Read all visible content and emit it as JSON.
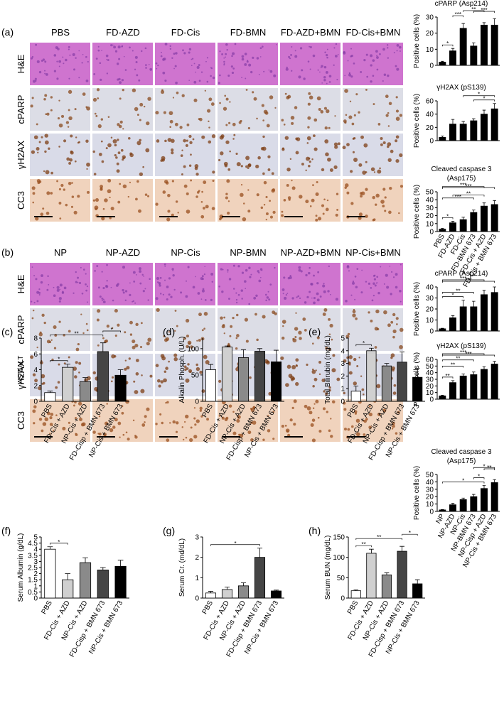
{
  "histology": [
    {
      "panel": "(a)",
      "columns": [
        "PBS",
        "FD-AZD",
        "FD-Cis",
        "FD-BMN",
        "FD-AZD+BMN",
        "FD-Cis+BMN"
      ],
      "rows": [
        "H&E",
        "cPARP",
        "γH2AX",
        "CC3"
      ]
    },
    {
      "panel": "(b)",
      "columns": [
        "NP",
        "NP-AZD",
        "NP-Cis",
        "NP-BMN",
        "NP-AZD+BMN",
        "NP-Cis+BMN"
      ],
      "rows": [
        "H&E",
        "cPARP",
        "γH2AX",
        "CC3"
      ]
    }
  ],
  "chart_data": [
    {
      "type": "bar",
      "title": [
        "cPARP (Asp214)"
      ],
      "ylabel": "Positive cells (%)",
      "ylim": [
        0,
        30
      ],
      "yticks": [
        0,
        10,
        20,
        30
      ],
      "values": [
        2,
        9,
        23,
        12,
        25,
        25
      ],
      "errors": [
        0.5,
        1.5,
        3,
        2,
        1.5,
        4
      ],
      "colors": [
        "#000000",
        "#000000",
        "#000000",
        "#000000",
        "#000000",
        "#000000"
      ],
      "brackets": [
        {
          "pair": [
            0,
            1
          ],
          "label": "*"
        },
        {
          "pair": [
            1,
            2
          ],
          "label": "***"
        },
        {
          "pair": [
            2,
            4
          ],
          "label": "**"
        },
        {
          "pair": [
            3,
            5
          ],
          "label": "***"
        }
      ]
    },
    {
      "type": "bar",
      "title": [
        "γH2AX (pS139)"
      ],
      "ylabel": "Positive cells (%)",
      "ylim": [
        0,
        60
      ],
      "yticks": [
        0,
        20,
        40,
        60
      ],
      "values": [
        5,
        25,
        25,
        30,
        40,
        48
      ],
      "errors": [
        2,
        7,
        4,
        3,
        6,
        8
      ],
      "colors": [
        "#000000",
        "#000000",
        "#000000",
        "#000000",
        "#000000",
        "#000000"
      ],
      "brackets": [
        {
          "pair": [
            3,
            5
          ],
          "label": "*"
        },
        {
          "pair": [
            2,
            5
          ],
          "label": "*"
        }
      ]
    },
    {
      "type": "bar",
      "title": [
        "Cleaved caspase 3",
        "(Asp175)"
      ],
      "ylabel": "Positive cells (%)",
      "ylim": [
        0,
        50
      ],
      "yticks": [
        0,
        10,
        20,
        30,
        40,
        50
      ],
      "categories": [
        "PBS",
        "FD-AZD",
        "FD-Cis",
        "FD-BMN 673",
        "FD-Cis + AZD",
        "FD-Cis + BMN 673"
      ],
      "values": [
        3,
        11,
        15,
        24,
        32,
        34
      ],
      "errors": [
        1,
        2,
        3,
        3,
        4,
        5
      ],
      "colors": [
        "#000000",
        "#000000",
        "#000000",
        "#000000",
        "#000000",
        "#000000"
      ],
      "brackets": [
        {
          "pair": [
            0,
            1
          ],
          "label": "*"
        },
        {
          "pair": [
            1,
            4
          ],
          "label": "**"
        },
        {
          "pair": [
            0,
            3
          ],
          "label": "***"
        },
        {
          "pair": [
            0,
            4
          ],
          "label": "***"
        },
        {
          "pair": [
            0,
            5
          ],
          "label": "***"
        }
      ]
    },
    {
      "type": "bar",
      "title": [
        "cPARP (Asp214)"
      ],
      "ylabel": "Positive cells (%)",
      "ylim": [
        0,
        40
      ],
      "yticks": [
        0,
        10,
        20,
        30,
        40
      ],
      "values": [
        2,
        12,
        22,
        22,
        33,
        35
      ],
      "errors": [
        0.5,
        2,
        6,
        5,
        4,
        5
      ],
      "colors": [
        "#000000",
        "#000000",
        "#000000",
        "#000000",
        "#000000",
        "#000000"
      ],
      "brackets": [
        {
          "pair": [
            0,
            2
          ],
          "label": "*"
        },
        {
          "pair": [
            0,
            3
          ],
          "label": "**"
        },
        {
          "pair": [
            0,
            4
          ],
          "label": "***"
        },
        {
          "pair": [
            0,
            5
          ],
          "label": "***"
        }
      ]
    },
    {
      "type": "bar",
      "title": [
        "γH2AX (pS139)"
      ],
      "ylabel": "Positive cells (%)",
      "ylim": [
        0,
        60
      ],
      "yticks": [
        0,
        10,
        20,
        30,
        40,
        50,
        60
      ],
      "values": [
        5,
        25,
        35,
        37,
        45,
        53
      ],
      "errors": [
        1,
        3,
        3,
        4,
        4,
        4
      ],
      "colors": [
        "#000000",
        "#000000",
        "#000000",
        "#000000",
        "#000000",
        "#000000"
      ],
      "brackets": [
        {
          "pair": [
            0,
            1
          ],
          "label": "**"
        },
        {
          "pair": [
            0,
            2
          ],
          "label": "**"
        },
        {
          "pair": [
            0,
            3
          ],
          "label": "**"
        },
        {
          "pair": [
            0,
            4
          ],
          "label": "***"
        },
        {
          "pair": [
            0,
            5
          ],
          "label": "***"
        }
      ]
    },
    {
      "type": "bar",
      "title": [
        "Cleaved caspase 3",
        "(Asp175)"
      ],
      "ylabel": "Positive cells (%)",
      "ylim": [
        0,
        50
      ],
      "yticks": [
        0,
        10,
        20,
        30,
        40,
        50
      ],
      "categories": [
        "NP",
        "NP-AZD",
        "NP-Cis",
        "NP-BMN 673",
        "NP-Cisp + AZD",
        "NP-Cis + BMN 673"
      ],
      "values": [
        2,
        9,
        16,
        20,
        31,
        39
      ],
      "errors": [
        0.5,
        2,
        2,
        3,
        4,
        4
      ],
      "colors": [
        "#000000",
        "#000000",
        "#000000",
        "#000000",
        "#000000",
        "#000000"
      ],
      "brackets": [
        {
          "pair": [
            0,
            4
          ],
          "label": "*"
        },
        {
          "pair": [
            3,
            4
          ],
          "label": "*"
        },
        {
          "pair": [
            3,
            5
          ],
          "label": "*"
        },
        {
          "pair": [
            4,
            5
          ],
          "label": "**"
        }
      ]
    },
    {
      "type": "bar",
      "panel": "(c)",
      "ylabel": "AST/ALT",
      "ylim": [
        0,
        8
      ],
      "yticks": [
        0,
        2,
        4,
        6,
        8
      ],
      "categories": [
        "PBS",
        "FD-Cis + AZD",
        "NP-Cis + AZD",
        "FD-Cisp + BMN 673",
        "NP-Cis + BMN 673"
      ],
      "values": [
        1.1,
        4.3,
        2.5,
        6.3,
        3.3
      ],
      "errors": [
        0.2,
        0.4,
        0.5,
        1.1,
        0.7
      ],
      "colors": [
        "#ffffff",
        "#d0d0d0",
        "#8a8a8a",
        "#454545",
        "#000000"
      ],
      "brackets": [
        {
          "pair": [
            0,
            1
          ],
          "label": "*"
        },
        {
          "pair": [
            0,
            3
          ],
          "label": "**"
        },
        {
          "pair": [
            3,
            4
          ],
          "label": "*"
        }
      ]
    },
    {
      "type": "bar",
      "panel": "(d)",
      "ylabel": "Alkalin Phosph. (U/L)",
      "ylim": [
        0,
        120
      ],
      "yticks": [
        0,
        50,
        100
      ],
      "categories": [
        "PBS",
        "FD-Cis + AZD",
        "NP-Cis + AZD",
        "FD-Cisp + BMN 673",
        "NP-Cis + BMN 673"
      ],
      "values": [
        60,
        103,
        83,
        95,
        75
      ],
      "errors": [
        10,
        2,
        15,
        5,
        22
      ],
      "colors": [
        "#ffffff",
        "#d0d0d0",
        "#8a8a8a",
        "#454545",
        "#000000"
      ],
      "brackets": []
    },
    {
      "type": "bar",
      "panel": "(e)",
      "ylabel": "Total Bilirubin (mg/dL)",
      "ylim": [
        0,
        5
      ],
      "yticks": [
        0,
        1,
        2,
        3,
        4,
        5
      ],
      "categories": [
        "PBS",
        "FD-Cis + AZD",
        "NP-Cis + AZD",
        "FD-Cisp + BMN 673",
        "NP-Cis + BMN 673"
      ],
      "values": [
        0.8,
        4.0,
        2.8,
        3.1,
        1.9
      ],
      "errors": [
        0.4,
        0.2,
        0.2,
        0.8,
        0.7
      ],
      "colors": [
        "#ffffff",
        "#d0d0d0",
        "#8a8a8a",
        "#454545",
        "#000000"
      ],
      "brackets": [
        {
          "pair": [
            0,
            1
          ],
          "label": "*"
        }
      ]
    },
    {
      "type": "bar",
      "panel": "(f)",
      "ylabel": "Serum Albumin (g/dL)",
      "ylim": [
        0,
        5
      ],
      "yticks": [
        0,
        0.5,
        1,
        1.5,
        2,
        2.5,
        3,
        3.5,
        4,
        4.5,
        5
      ],
      "categories": [
        "PBS",
        "FD-Cis + AZD",
        "NP-Cis + AZD",
        "FD-Cisp + BMN 673",
        "NP-Cis + BMN 673"
      ],
      "values": [
        4.0,
        1.5,
        2.9,
        2.3,
        2.6
      ],
      "errors": [
        0.2,
        0.5,
        0.4,
        0.2,
        0.5
      ],
      "colors": [
        "#ffffff",
        "#d0d0d0",
        "#8a8a8a",
        "#454545",
        "#000000"
      ],
      "brackets": [
        {
          "pair": [
            0,
            1
          ],
          "label": "*"
        }
      ]
    },
    {
      "type": "bar",
      "panel": "(g)",
      "ylabel": "Serum Cr. (md/dL)",
      "ylim": [
        0,
        3
      ],
      "yticks": [
        0,
        1,
        2,
        3
      ],
      "categories": [
        "PBS",
        "FD-Cis + AZD",
        "NP-Cis + AZD",
        "FD-Cisp + BMN 673",
        "NP-Cis + BMN 673"
      ],
      "values": [
        0.25,
        0.42,
        0.6,
        2.0,
        0.35
      ],
      "errors": [
        0.08,
        0.12,
        0.15,
        0.45,
        0.04
      ],
      "colors": [
        "#ffffff",
        "#d0d0d0",
        "#8a8a8a",
        "#454545",
        "#000000"
      ],
      "brackets": [
        {
          "pair": [
            0,
            3
          ],
          "label": "*"
        }
      ]
    },
    {
      "type": "bar",
      "panel": "(h)",
      "ylabel": "Serum BUN (mg/dL)",
      "ylim": [
        0,
        150
      ],
      "yticks": [
        0,
        50,
        100,
        150
      ],
      "categories": [
        "PBS",
        "FD-Cis + AZD",
        "NP-Cis + AZD",
        "FD-Cisp + BMN 673",
        "NP-Cis + BMN 673"
      ],
      "values": [
        18,
        110,
        57,
        115,
        35
      ],
      "errors": [
        2,
        10,
        5,
        12,
        10
      ],
      "colors": [
        "#ffffff",
        "#d0d0d0",
        "#8a8a8a",
        "#454545",
        "#000000"
      ],
      "brackets": [
        {
          "pair": [
            0,
            1
          ],
          "label": "**"
        },
        {
          "pair": [
            0,
            3
          ],
          "label": "**"
        },
        {
          "pair": [
            3,
            4
          ],
          "label": "*"
        }
      ]
    }
  ]
}
